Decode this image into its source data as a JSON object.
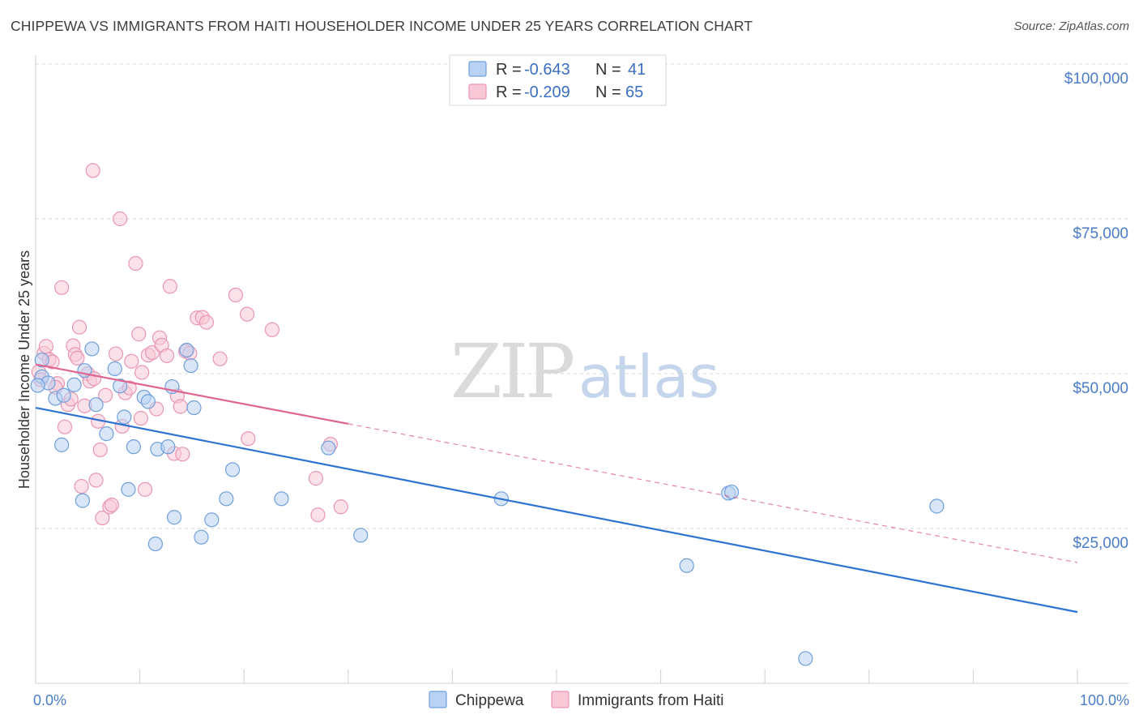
{
  "title": "CHIPPEWA VS IMMIGRANTS FROM HAITI HOUSEHOLDER INCOME UNDER 25 YEARS CORRELATION CHART",
  "source": "Source: ZipAtlas.com",
  "watermark": {
    "part1": "ZIP",
    "part2": "atlas"
  },
  "colors": {
    "blue_fill": "#b9d2f3",
    "blue_stroke": "#6f9fdc",
    "blue_line": "#2f73d2",
    "pink_fill": "#f8c8d6",
    "pink_stroke": "#e996b2",
    "pink_line": "#e0658f",
    "grid": "#d9d9d9",
    "tick_label": "#4a7cc9"
  },
  "legend": {
    "rows": [
      {
        "series": "chippewa",
        "r_label": "R =",
        "r_value": "-0.643",
        "n_label": "N =",
        "n_value": "41"
      },
      {
        "series": "haiti",
        "r_label": "R =",
        "r_value": "-0.209",
        "n_label": "N =",
        "n_value": "65"
      }
    ]
  },
  "chart_data": {
    "type": "scatter",
    "title": "CHIPPEWA VS IMMIGRANTS FROM HAITI HOUSEHOLDER INCOME UNDER 25 YEARS CORRELATION CHART",
    "xlabel": "",
    "ylabel": "Householder Income Under 25 years",
    "xlim": [
      0,
      100
    ],
    "ylim": [
      0,
      104000
    ],
    "x_tick_labels": [
      {
        "value": 0,
        "label": "0.0%"
      },
      {
        "value": 100,
        "label": "100.0%"
      }
    ],
    "y_ticks": [
      {
        "value": 100000,
        "label": "$100,000"
      },
      {
        "value": 75000,
        "label": "$75,000"
      },
      {
        "value": 50000,
        "label": "$50,000"
      },
      {
        "value": 25000,
        "label": "$25,000"
      }
    ],
    "x_minor_ticks": [
      10,
      20,
      30,
      40,
      50,
      60,
      70,
      80,
      90,
      100
    ],
    "legend_position": "top-center",
    "series": [
      {
        "name": "Chippewa",
        "key": "chippewa",
        "trend": {
          "x0": 0,
          "y0": 44500,
          "x1": 100,
          "y1": 11500,
          "solid_until": 100
        },
        "points": [
          [
            0.6,
            52200
          ],
          [
            0.6,
            49500
          ],
          [
            1.2,
            48500
          ],
          [
            1.9,
            46000
          ],
          [
            2.5,
            38500
          ],
          [
            2.7,
            46500
          ],
          [
            3.7,
            48200
          ],
          [
            4.5,
            29500
          ],
          [
            4.7,
            50500
          ],
          [
            5.4,
            54000
          ],
          [
            5.8,
            45000
          ],
          [
            6.8,
            40300
          ],
          [
            7.6,
            50800
          ],
          [
            8.1,
            48000
          ],
          [
            8.5,
            43000
          ],
          [
            8.9,
            31300
          ],
          [
            9.4,
            38200
          ],
          [
            10.4,
            46200
          ],
          [
            10.8,
            45500
          ],
          [
            11.5,
            22500
          ],
          [
            11.7,
            37800
          ],
          [
            12.7,
            38200
          ],
          [
            13.3,
            26800
          ],
          [
            13.1,
            47900
          ],
          [
            14.5,
            53800
          ],
          [
            14.9,
            51300
          ],
          [
            15.2,
            44500
          ],
          [
            15.9,
            23600
          ],
          [
            16.9,
            26400
          ],
          [
            18.3,
            29800
          ],
          [
            18.9,
            34500
          ],
          [
            23.6,
            29800
          ],
          [
            28.1,
            38000
          ],
          [
            31.2,
            23900
          ],
          [
            44.7,
            29800
          ],
          [
            62.5,
            19000
          ],
          [
            66.5,
            30700
          ],
          [
            66.8,
            30900
          ],
          [
            73.9,
            4000
          ],
          [
            86.5,
            28600
          ],
          [
            0.2,
            48100
          ]
        ]
      },
      {
        "name": "Immigrants from Haiti",
        "key": "haiti",
        "trend": {
          "x0": 0,
          "y0": 51500,
          "x1": 100,
          "y1": 19500,
          "solid_until": 30
        },
        "points": [
          [
            0.3,
            50300
          ],
          [
            0.5,
            49000
          ],
          [
            0.8,
            53300
          ],
          [
            1.0,
            54400
          ],
          [
            1.3,
            52300
          ],
          [
            1.6,
            51900
          ],
          [
            2.1,
            48400
          ],
          [
            2.5,
            63900
          ],
          [
            2.8,
            41400
          ],
          [
            3.1,
            45000
          ],
          [
            3.6,
            54500
          ],
          [
            3.8,
            53100
          ],
          [
            4.0,
            52500
          ],
          [
            4.2,
            57500
          ],
          [
            4.4,
            31800
          ],
          [
            4.7,
            44800
          ],
          [
            5.0,
            50000
          ],
          [
            5.2,
            48800
          ],
          [
            5.5,
            82800
          ],
          [
            5.8,
            32800
          ],
          [
            6.0,
            42300
          ],
          [
            6.2,
            37700
          ],
          [
            6.4,
            26700
          ],
          [
            6.7,
            46500
          ],
          [
            7.1,
            28500
          ],
          [
            7.3,
            28800
          ],
          [
            7.7,
            53200
          ],
          [
            8.1,
            75000
          ],
          [
            8.3,
            41500
          ],
          [
            8.6,
            46900
          ],
          [
            9.0,
            47700
          ],
          [
            9.2,
            52000
          ],
          [
            9.6,
            67800
          ],
          [
            9.9,
            56400
          ],
          [
            10.1,
            42800
          ],
          [
            10.5,
            31300
          ],
          [
            10.8,
            53000
          ],
          [
            11.2,
            53400
          ],
          [
            11.6,
            44300
          ],
          [
            11.9,
            55800
          ],
          [
            12.1,
            54600
          ],
          [
            12.6,
            52900
          ],
          [
            12.9,
            64100
          ],
          [
            13.3,
            37100
          ],
          [
            13.6,
            46400
          ],
          [
            14.1,
            37000
          ],
          [
            14.4,
            53600
          ],
          [
            14.8,
            53300
          ],
          [
            15.5,
            59000
          ],
          [
            16.0,
            59100
          ],
          [
            17.7,
            52400
          ],
          [
            19.2,
            62700
          ],
          [
            20.3,
            59600
          ],
          [
            20.4,
            39500
          ],
          [
            26.9,
            33100
          ],
          [
            27.1,
            27200
          ],
          [
            28.3,
            38600
          ],
          [
            29.3,
            28500
          ],
          [
            1.9,
            47800
          ],
          [
            5.6,
            49200
          ],
          [
            10.2,
            50200
          ],
          [
            13.9,
            44700
          ],
          [
            3.4,
            45900
          ],
          [
            16.4,
            58300
          ],
          [
            22.7,
            57100
          ]
        ]
      }
    ]
  },
  "bottom_legend": [
    {
      "series": "chippewa",
      "label": "Chippewa"
    },
    {
      "series": "haiti",
      "label": "Immigrants from Haiti"
    }
  ]
}
